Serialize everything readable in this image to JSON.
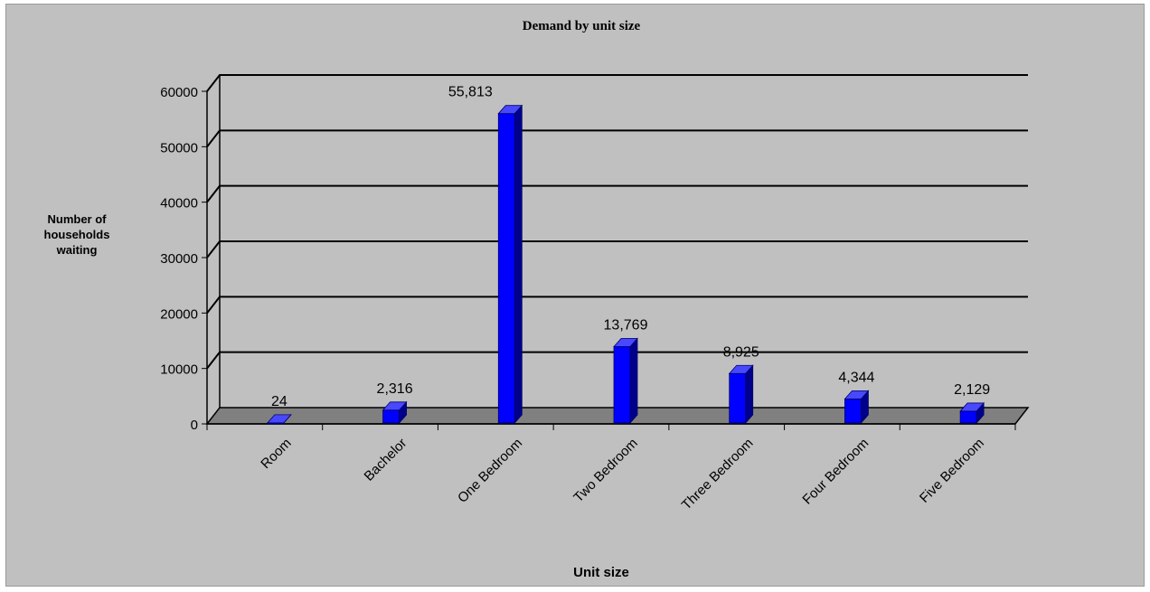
{
  "chart_data": {
    "type": "bar",
    "title": "Demand by unit size",
    "xlabel": "Unit size",
    "ylabel_lines": [
      "Number of",
      "households",
      "waiting"
    ],
    "categories": [
      "Room",
      "Bachelor",
      "One Bedroom",
      "Two Bedroom",
      "Three Bedroom",
      "Four Bedroom",
      "Five Bedroom"
    ],
    "values": [
      24,
      2316,
      55813,
      13769,
      8925,
      4344,
      2129
    ],
    "value_labels": [
      "24",
      "2,316",
      "55,813",
      "13,769",
      "8,925",
      "4,344",
      "2,129"
    ],
    "ylim": [
      0,
      60000
    ],
    "yticks": [
      0,
      10000,
      20000,
      30000,
      40000,
      50000,
      60000
    ],
    "grid": true,
    "style": "3d-column",
    "colors": {
      "bar": "#0000ff",
      "bar_side": "#00008b",
      "bar_top": "#4848ff",
      "floor": "#808080",
      "background": "#c0c0c0"
    }
  }
}
